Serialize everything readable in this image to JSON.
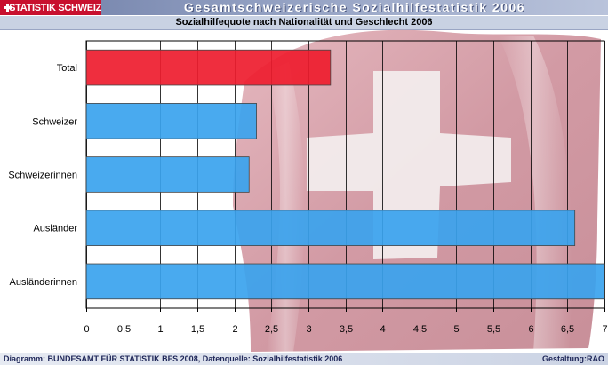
{
  "header": {
    "logo_text": "STATISTIK SCHWEIZ",
    "title": "Gesamtschweizerische Sozialhilfestatistik 2006"
  },
  "footer": {
    "left": "Diagramm: BUNDESAMT FÜR STATISTIK BFS 2008,  Datenquelle: Sozialhilfestatistik 2006",
    "right": "Gestaltung:RAO"
  },
  "chart_data": {
    "type": "bar",
    "orientation": "horizontal",
    "title": "Sozialhilfequote nach Nationalität und Geschlecht 2006",
    "categories": [
      "Total",
      "Schweizer",
      "Schweizerinnen",
      "Ausländer",
      "Ausländerinnen"
    ],
    "values": [
      3.3,
      2.3,
      2.2,
      6.6,
      7.0
    ],
    "bar_colors": [
      "#ee1c2e",
      "#3aa3ee",
      "#3aa3ee",
      "#3aa3ee",
      "#3aa3ee"
    ],
    "xlim": [
      0,
      7
    ],
    "xticks": [
      "0",
      "0,5",
      "1",
      "1,5",
      "2",
      "2,5",
      "3",
      "3,5",
      "4",
      "4,5",
      "5",
      "5,5",
      "6",
      "6,5",
      "7"
    ],
    "grid": true,
    "background": "Swiss flag"
  }
}
